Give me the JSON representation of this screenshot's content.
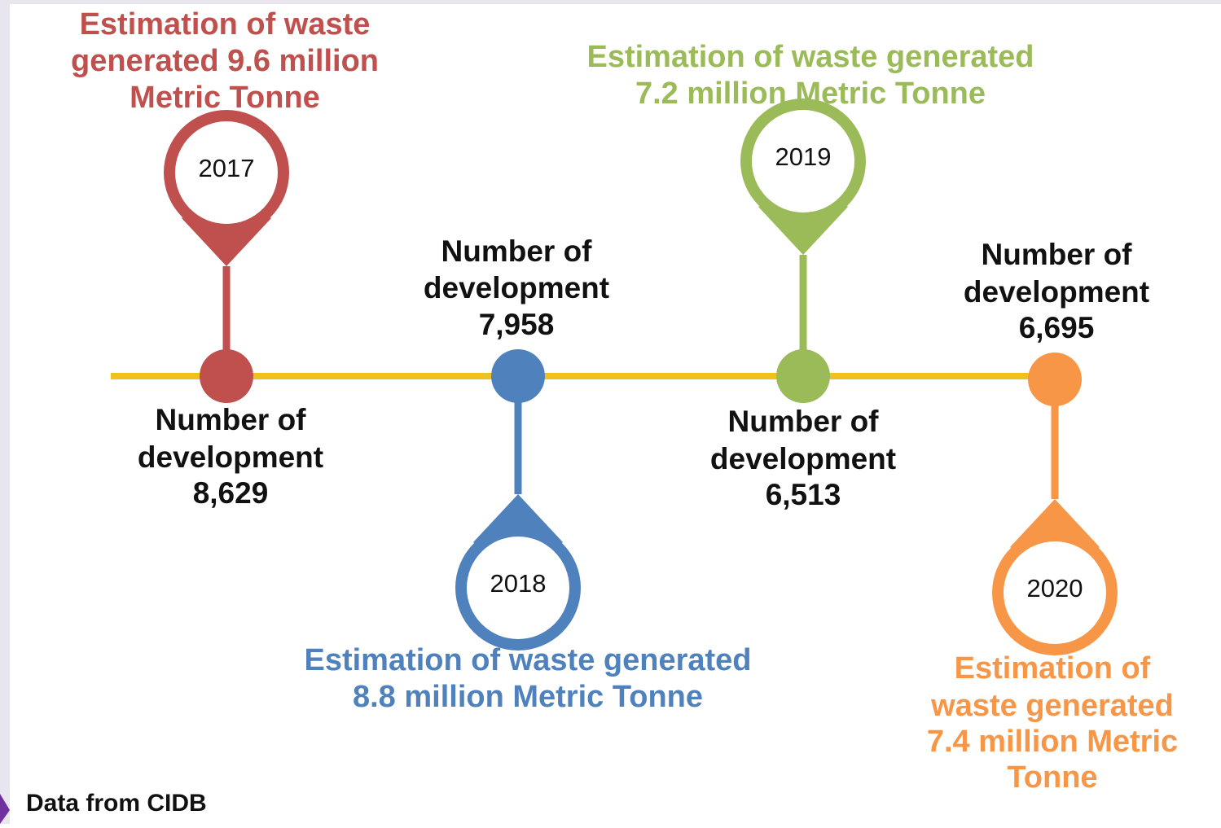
{
  "nodes": [
    {
      "year": "2017",
      "color": "#c0504d",
      "waste": [
        "Estimation of waste",
        "generated 9.6 million",
        "Metric Tonne"
      ],
      "development": [
        "Number of",
        "development",
        "8,629"
      ]
    },
    {
      "year": "2018",
      "color": "#4f81bd",
      "waste": [
        "Estimation of waste generated",
        "8.8 million Metric Tonne"
      ],
      "development": [
        "Number of",
        "development",
        "7,958"
      ]
    },
    {
      "year": "2019",
      "color": "#9bbb59",
      "waste": [
        "Estimation of waste generated",
        "7.2 million Metric Tonne"
      ],
      "development": [
        "Number of",
        "development",
        "6,513"
      ]
    },
    {
      "year": "2020",
      "color": "#f79646",
      "waste": [
        "Estimation of",
        "waste generated",
        "7.4 million Metric",
        "Tonne"
      ],
      "development": [
        "Number of",
        "development",
        "6,695"
      ]
    }
  ],
  "source": "Data from CIDB"
}
